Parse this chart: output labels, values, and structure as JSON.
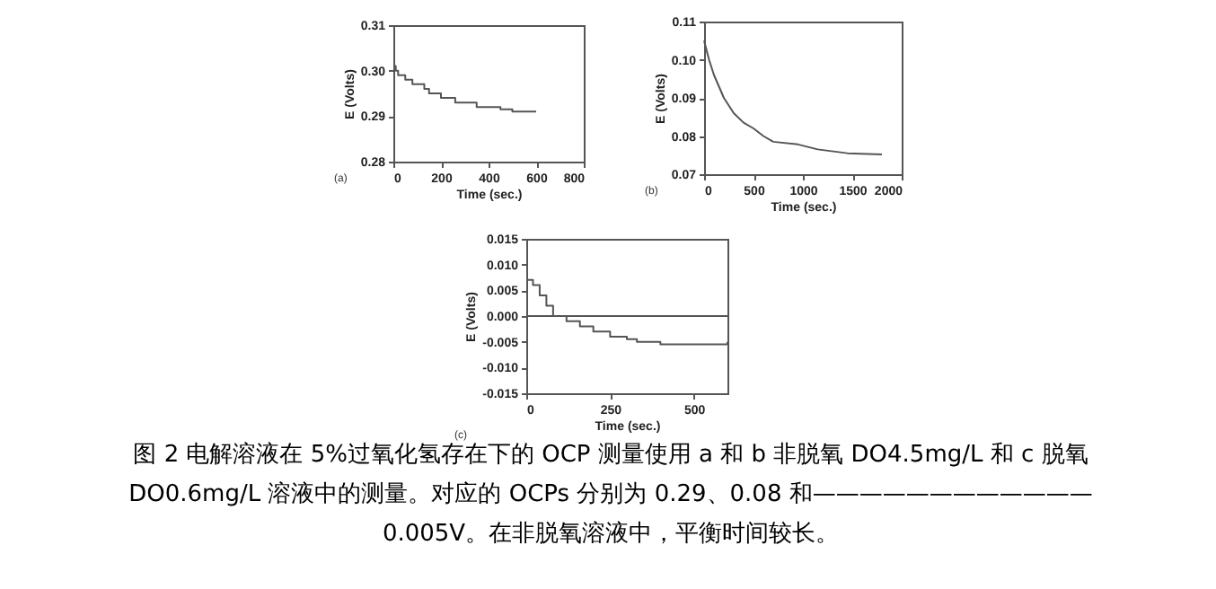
{
  "chart_data": [
    {
      "type": "step",
      "xlabel": "Time (sec.)",
      "ylabel": "E (Volts)",
      "xlim": [
        0,
        800
      ],
      "xticks": [
        0,
        200,
        400,
        600,
        800
      ],
      "ylim": [
        0.28,
        0.31
      ],
      "yticks": [
        0.28,
        0.29,
        {
          "value": 0.3,
          "label": "0.30"
        },
        0.31
      ],
      "grid": false,
      "marker": "none",
      "annotations": [
        "(a)"
      ],
      "series": [
        {
          "color": "#555555",
          "x": [
            0,
            10,
            20,
            50,
            80,
            130,
            150,
            200,
            260,
            350,
            450,
            500,
            600
          ],
          "values": [
            0.301,
            0.3,
            0.299,
            0.298,
            0.297,
            0.296,
            0.295,
            0.294,
            0.293,
            0.292,
            0.2915,
            0.291,
            0.291
          ]
        }
      ]
    },
    {
      "type": "line",
      "xlabel": "Time (sec.)",
      "ylabel": "E (Volts)",
      "xlim": [
        0,
        2000
      ],
      "xticks": [
        0,
        500,
        1000,
        1500,
        2000
      ],
      "ylim": [
        0.07,
        0.11
      ],
      "yticks": [
        0.07,
        0.08,
        0.09,
        {
          "value": 0.1,
          "label": "0.10"
        },
        0.11
      ],
      "grid": false,
      "marker": "none",
      "annotations": [
        "(b)"
      ],
      "series": [
        {
          "color": "#555555",
          "x": [
            0,
            50,
            100,
            200,
            300,
            400,
            500,
            600,
            700,
            950,
            1150,
            1450,
            1800
          ],
          "values": [
            0.105,
            0.1,
            0.096,
            0.09,
            0.086,
            0.0835,
            0.082,
            0.08,
            0.0785,
            0.0778,
            0.0765,
            0.0755,
            0.0752
          ]
        }
      ]
    },
    {
      "type": "step",
      "xlabel": "Time (sec.)",
      "ylabel": "E (Volts)",
      "xlim": [
        0,
        600
      ],
      "xticks": [
        0,
        250,
        500
      ],
      "ylim": [
        -0.015,
        0.015
      ],
      "yticks": [
        0.015,
        {
          "value": 0.01,
          "label": "0.010"
        },
        0.005,
        {
          "value": 0,
          "label": "0.000"
        },
        -0.005,
        {
          "value": -0.01,
          "label": "-0.010"
        },
        -0.015
      ],
      "grid": false,
      "marker": "none",
      "ref_lines": [
        {
          "axis": "y",
          "value": 0,
          "color": "#555555"
        }
      ],
      "annotations": [
        "(c)",
        "图 2  电解溶液在 5%过氧化氢存在下的 OCP 测量使用 a 和 b 非脱氧 DO4.5mg/L 和 c 脱氧 DO0.6mg/L 溶液中的测量。对应的 OCPs 分别为 0.29、0.08 和————————————0.005V。在非脱氧溶液中，平衡时间较长。"
      ],
      "series": [
        {
          "color": "#555555",
          "x": [
            0,
            20,
            40,
            60,
            80,
            120,
            160,
            200,
            250,
            300,
            330,
            400,
            600
          ],
          "values": [
            0.007,
            0.006,
            0.004,
            0.002,
            0,
            -0.001,
            -0.002,
            -0.003,
            -0.004,
            -0.0045,
            -0.005,
            -0.0055,
            -0.005
          ]
        }
      ]
    }
  ]
}
